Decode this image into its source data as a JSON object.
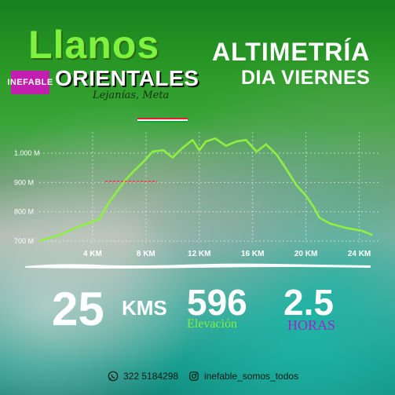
{
  "header": {
    "title_main": "Llanos",
    "brand_badge": "INEFABLE",
    "title_sub": "ORIENTALES",
    "place": "Lejanías, Meta"
  },
  "altimetry": {
    "title": "ALTIMETRÍA",
    "subtitle": "DIA VIERNES"
  },
  "stats": {
    "distance": "25",
    "distance_unit": "KMS",
    "elevation": "596",
    "elevation_label": "Elevación",
    "time": "2.5",
    "time_label": "HORAS"
  },
  "contacts": {
    "phone": "322 5184298",
    "instagram": "inefable_somos_todos",
    "phone_icon": "whatsapp-icon",
    "instagram_icon": "instagram-icon"
  },
  "colors": {
    "accent_green": "#7df33f",
    "brand_magenta": "#c21fb0",
    "horas_purple": "#9b28c9",
    "profile_line": "#8ff042"
  },
  "chart_data": {
    "type": "line",
    "title": "ALTIMETRÍA",
    "xlabel": "",
    "ylabel": "",
    "x_ticks": [
      "4 KM",
      "8 KM",
      "12 KM",
      "16 KM",
      "20 KM",
      "24 KM"
    ],
    "x_tick_values": [
      4,
      8,
      12,
      16,
      20,
      24
    ],
    "y_ticks": [
      "700 M",
      "800 M",
      "900 M",
      "1.000 M"
    ],
    "y_tick_values": [
      700,
      800,
      900,
      1000
    ],
    "xlim": [
      0,
      25.5
    ],
    "ylim": [
      700,
      1000
    ],
    "grid": true,
    "series": [
      {
        "x": [
          0,
          1.5,
          3,
          4.5,
          5.2,
          6,
          6.5,
          7,
          7.8,
          8.5,
          9.3,
          10,
          10.8,
          11.5,
          12,
          12.5,
          13.2,
          14,
          14.8,
          15.5,
          16.3,
          17,
          17.8,
          18.6,
          19.3,
          20,
          20.6,
          21,
          21.8,
          23,
          24.2,
          25
        ],
        "y": [
          700,
          720,
          750,
          775,
          830,
          880,
          910,
          935,
          970,
          1005,
          1010,
          985,
          1020,
          1045,
          1010,
          1040,
          1050,
          1025,
          1040,
          1045,
          1005,
          1030,
          995,
          940,
          890,
          855,
          815,
          780,
          760,
          745,
          735,
          720
        ]
      }
    ]
  }
}
